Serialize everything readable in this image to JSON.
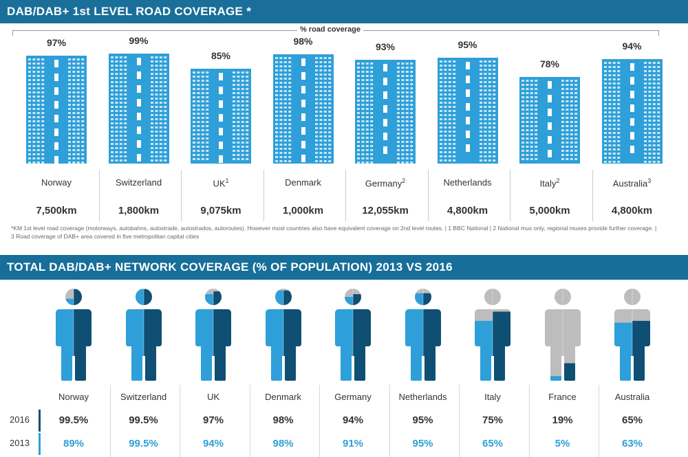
{
  "section1": {
    "title": "DAB/DAB+ 1st LEVEL ROAD COVERAGE *",
    "subtitle": "% road coverage",
    "footnote": "*KM 1st level road coverage (motorways, autobahns, autostrade, autostrados, autoroutes). However most countries also have equivalent coverage on 2nd level routes.  |  1 BBC National   |  2 National mux only, regional muxes provide further coverage.  |  3 Road coverage of DAB+ area covered in five metropolitan capital cities"
  },
  "section2": {
    "title": "TOTAL DAB/DAB+ NETWORK COVERAGE (% OF POPULATION) 2013 VS 2016",
    "year_2016": "2016",
    "year_2013": "2013"
  },
  "colors": {
    "header": "#1a6f9a",
    "road_blue": "#2e9fd8",
    "dark_blue": "#0f4f73",
    "light_blue": "#2e9fd8",
    "grey": "#bdbdbd"
  },
  "chart_data": [
    {
      "type": "bar",
      "title": "DAB/DAB+ 1st LEVEL ROAD COVERAGE *",
      "ylabel": "% road coverage",
      "ylim": [
        0,
        100
      ],
      "categories": [
        "Norway",
        "Switzerland",
        "UK",
        "Denmark",
        "Germany",
        "Netherlands",
        "Italy",
        "Australia"
      ],
      "superscripts": [
        "",
        "",
        "1",
        "",
        "2",
        "",
        "2",
        "3"
      ],
      "values": [
        97,
        99,
        85,
        98,
        93,
        95,
        78,
        94
      ],
      "labels": [
        "97%",
        "99%",
        "85%",
        "98%",
        "93%",
        "95%",
        "78%",
        "94%"
      ],
      "km": [
        "7,500km",
        "1,800km",
        "9,075km",
        "1,000km",
        "12,055km",
        "4,800km",
        "5,000km",
        "4,800km"
      ]
    },
    {
      "type": "bar",
      "title": "TOTAL DAB/DAB+ NETWORK COVERAGE (% OF POPULATION) 2013 VS 2016",
      "categories": [
        "Norway",
        "Switzerland",
        "UK",
        "Denmark",
        "Germany",
        "Netherlands",
        "Italy",
        "France",
        "Australia"
      ],
      "series": [
        {
          "name": "2016",
          "values": [
            99.5,
            99.5,
            97,
            98,
            94,
            95,
            75,
            19,
            65
          ],
          "labels": [
            "99.5%",
            "99.5%",
            "97%",
            "98%",
            "94%",
            "95%",
            "75%",
            "19%",
            "65%"
          ]
        },
        {
          "name": "2013",
          "values": [
            89,
            99.5,
            94,
            98,
            91,
            95,
            65,
            5,
            63
          ],
          "labels": [
            "89%",
            "99.5%",
            "94%",
            "98%",
            "91%",
            "95%",
            "65%",
            "5%",
            "63%"
          ]
        }
      ]
    }
  ]
}
